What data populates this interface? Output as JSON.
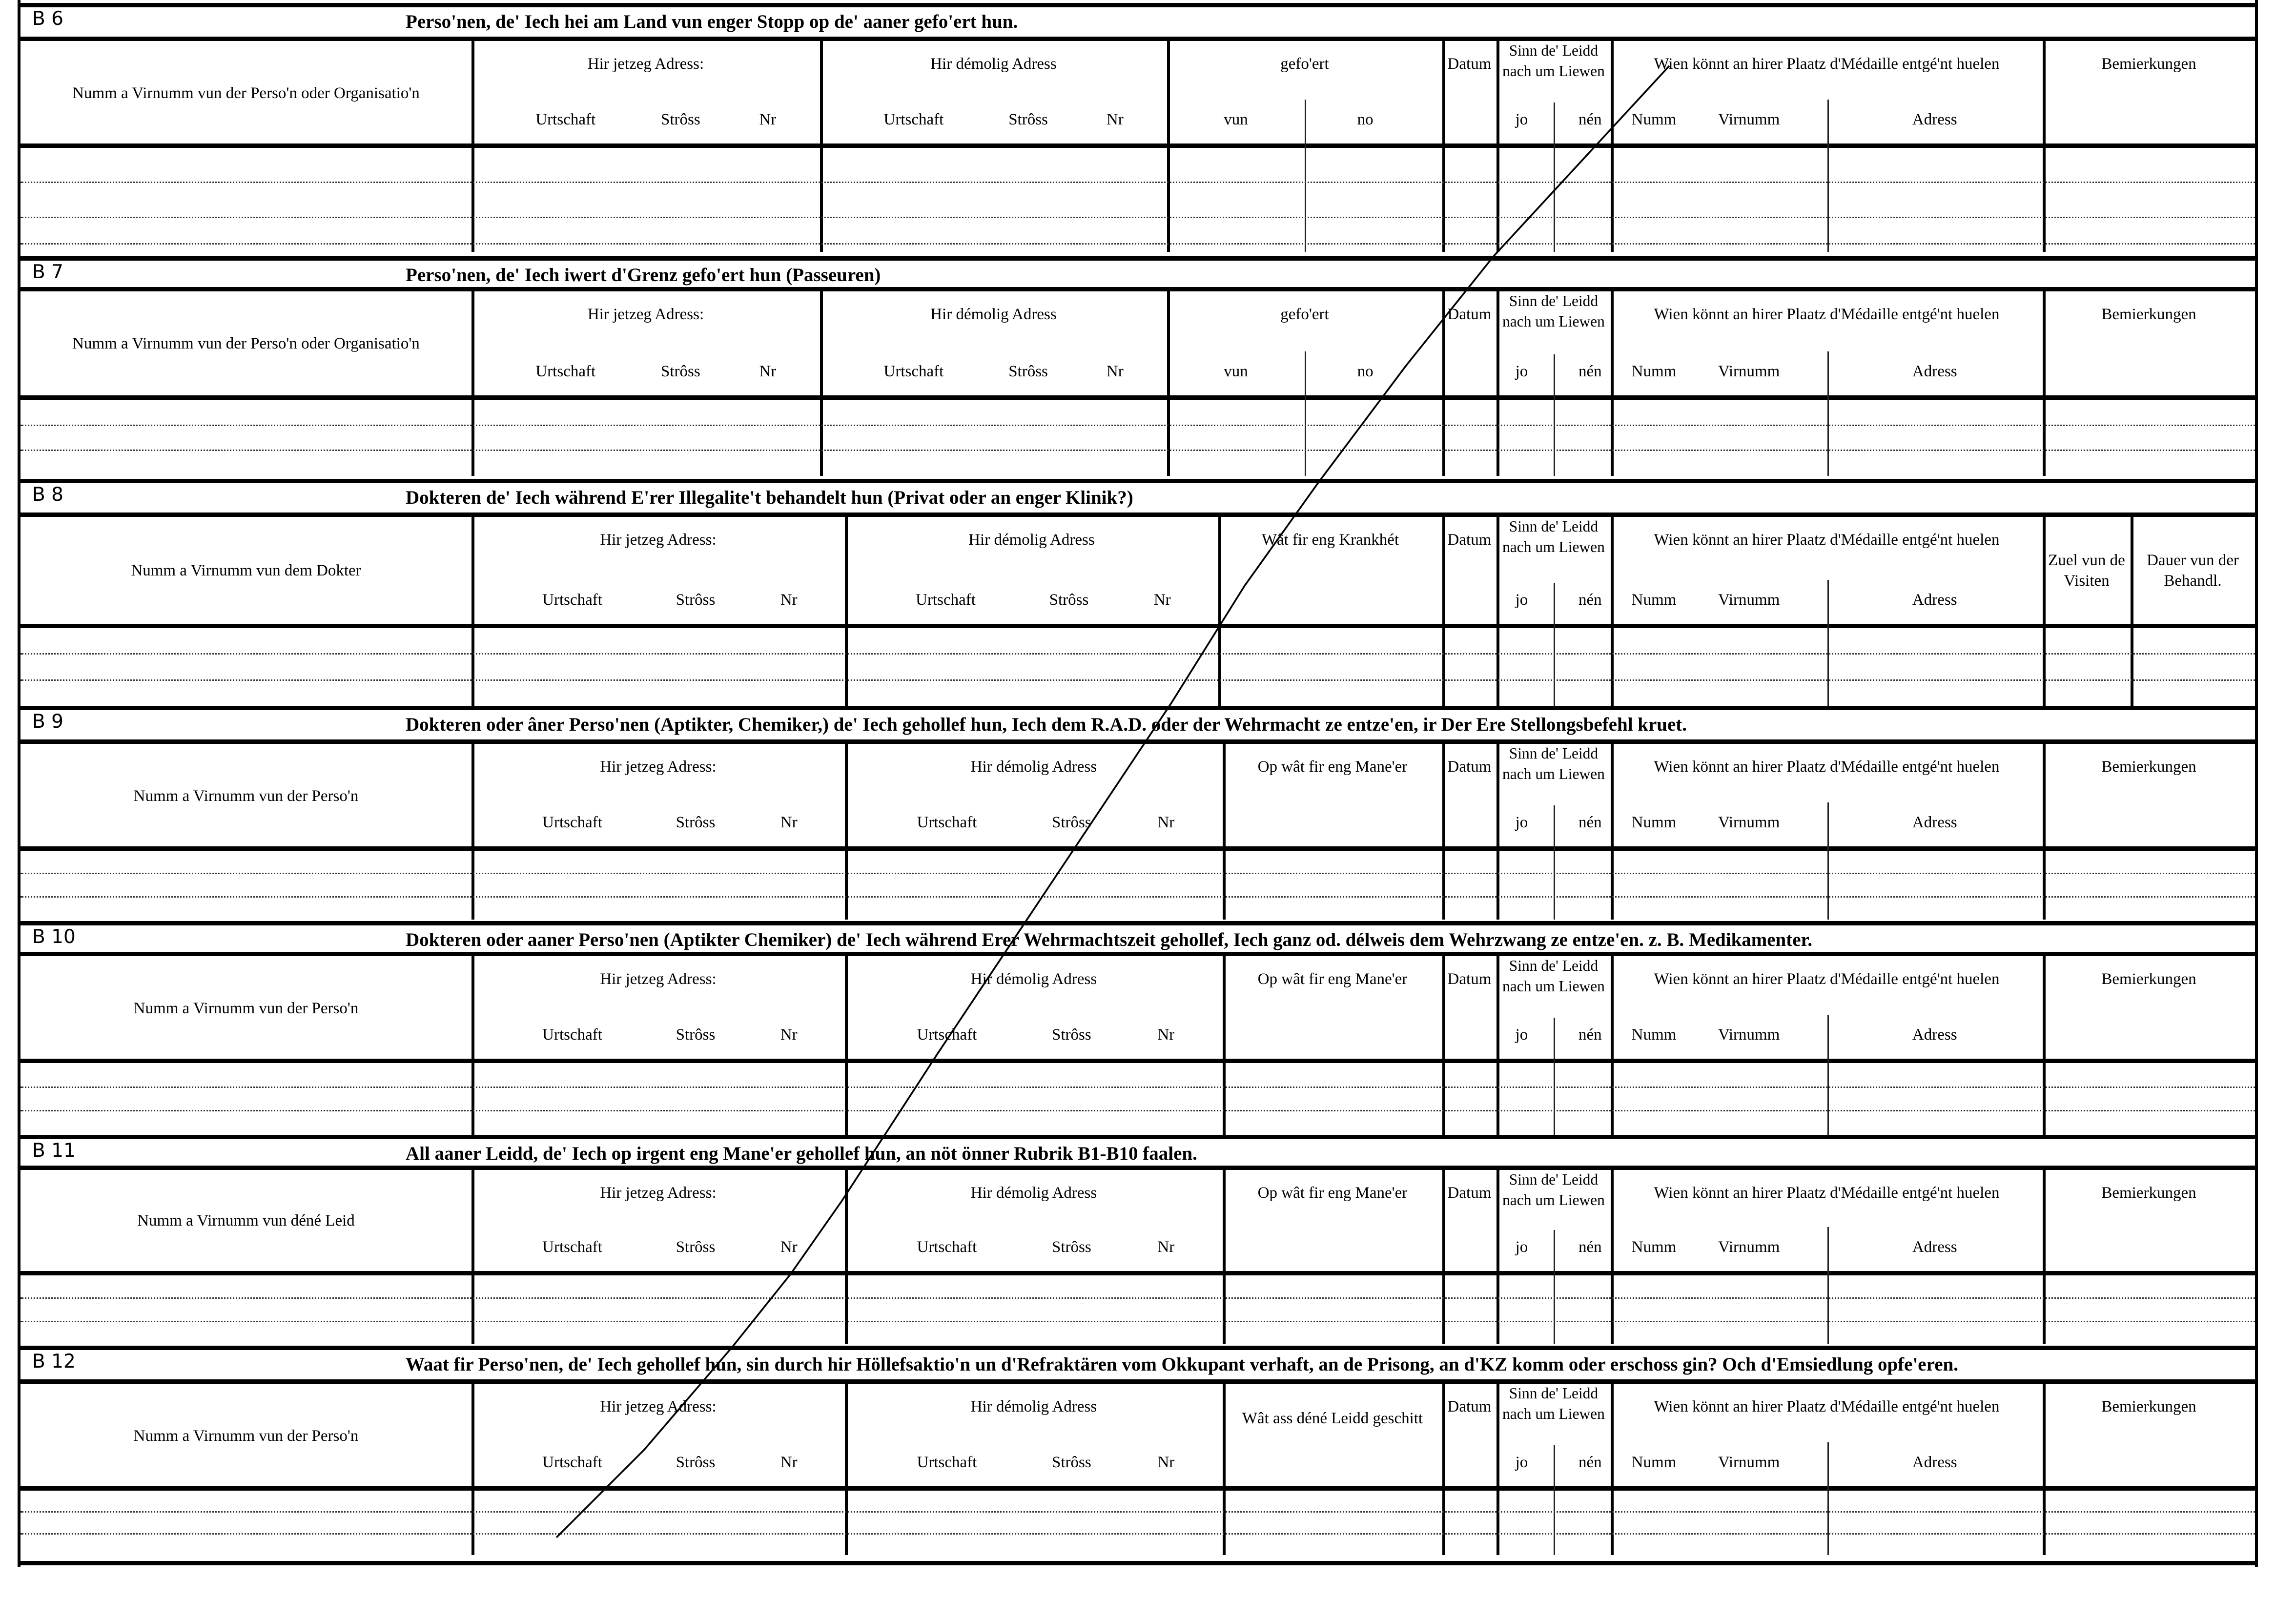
{
  "sections": [
    {
      "code": "B 6",
      "title": "Perso'nen, de' Iech hei am Land vun enger Stopp  op de' aaner gefo'ert hun.",
      "columns": [
        {
          "kind": "name",
          "label": "Numm a Virnumm vun der Perso'n oder Organisatio'n"
        },
        {
          "kind": "address",
          "label": "Hir jetzeg Adress:",
          "subs": [
            "Urtschaft",
            "Strôss",
            "Nr"
          ]
        },
        {
          "kind": "address",
          "label": "Hir démolig Adress",
          "subs": [
            "Urtschaft",
            "Strôss",
            "Nr"
          ]
        },
        {
          "kind": "split",
          "label": "gefo'ert",
          "subs": [
            "vun",
            "no"
          ]
        },
        {
          "kind": "datum",
          "label": "Datum"
        },
        {
          "kind": "sinn",
          "label": "Sinn  de' Leidd  nach um Liewen",
          "subs": [
            "jo",
            "nén"
          ]
        },
        {
          "kind": "wien",
          "label": "Wien  könnt  an  hirer  Plaatz  d'Médaille entgé'nt huelen",
          "subs": [
            "Numm",
            "Virnumm",
            "Adress"
          ]
        },
        {
          "kind": "single",
          "label": "Bemierkungen"
        }
      ]
    },
    {
      "code": "B 7",
      "title": "Perso'nen, de' Iech  iwert  d'Grenz  gefo'ert  hun  (Passeuren)",
      "columns": [
        {
          "kind": "name",
          "label": "Numm a Virnumm vun der Perso'n oder Organisatio'n"
        },
        {
          "kind": "address",
          "label": "Hir jetzeg Adress:",
          "subs": [
            "Urtschaft",
            "Strôss",
            "Nr"
          ]
        },
        {
          "kind": "address",
          "label": "Hir démolig Adress",
          "subs": [
            "Urtschaft",
            "Strôss",
            "Nr"
          ]
        },
        {
          "kind": "split",
          "label": "gefo'ert",
          "subs": [
            "vun",
            "no"
          ]
        },
        {
          "kind": "datum",
          "label": "Datum"
        },
        {
          "kind": "sinn",
          "label": "Sinn  de' Leidd  nach um Liewen",
          "subs": [
            "jo",
            "nén"
          ]
        },
        {
          "kind": "wien",
          "label": "Wien  könnt  an  hirer  Plaatz  d'Médaille entgé'nt huelen",
          "subs": [
            "Numm",
            "Virnumm",
            "Adress"
          ]
        },
        {
          "kind": "single",
          "label": "Bemierkungen"
        }
      ]
    },
    {
      "code": "B 8",
      "title": "Dokteren  de' Iech  während  E'rer  Illegalite't  behandelt  hun  (Privat  oder  an  enger  Klinik?)",
      "columns": [
        {
          "kind": "name",
          "label": "Numm a Virnumm vun dem Dokter"
        },
        {
          "kind": "address",
          "label": "Hir jetzeg Adress:",
          "subs": [
            "Urtschaft",
            "Strôss",
            "Nr"
          ]
        },
        {
          "kind": "address",
          "label": "Hir démolig Adress",
          "subs": [
            "Urtschaft",
            "Strôss",
            "Nr"
          ]
        },
        {
          "kind": "single",
          "label": "Wât fir eng Krankhét"
        },
        {
          "kind": "datum",
          "label": "Datum"
        },
        {
          "kind": "sinn",
          "label": "Sinn  de' Leidd  nach um Liewen",
          "subs": [
            "jo",
            "nén"
          ]
        },
        {
          "kind": "wien",
          "label": "Wien  könnt  an  hirer  Plaatz  d'Médaille entgé'nt huelen",
          "subs": [
            "Numm",
            "Virnumm",
            "Adress"
          ]
        },
        {
          "kind": "mid",
          "label": "Zuel vun de Visiten"
        },
        {
          "kind": "mid",
          "label": "Dauer vun der Behandl."
        }
      ]
    },
    {
      "code": "B 9",
      "title": "Dokteren oder âner Perso'nen (Aptikter, Chemiker,) de' Iech gehollef hun, Iech dem R.A.D. oder der  Wehrmacht  ze  entze'en,  ir  Der Ere  Stellongsbefehl kruet.",
      "columns": [
        {
          "kind": "name",
          "label": "Numm  a  Virnumm  vun der Perso'n"
        },
        {
          "kind": "address",
          "label": "Hir jetzeg Adress:",
          "subs": [
            "Urtschaft",
            "Strôss",
            "Nr"
          ]
        },
        {
          "kind": "address",
          "label": "Hir démolig Adress",
          "subs": [
            "Urtschaft",
            "Strôss",
            "Nr"
          ]
        },
        {
          "kind": "single",
          "label": "Op  wât  fir  eng  Mane'er"
        },
        {
          "kind": "datum",
          "label": "Datum"
        },
        {
          "kind": "sinn",
          "label": "Sinn  de' Leidd  nach um Liewen",
          "subs": [
            "jo",
            "nén"
          ]
        },
        {
          "kind": "wien",
          "label": "Wien  könnt  an  hirer  Plaatz  d'Médaille entgé'nt huelen",
          "subs": [
            "Numm",
            "Virnumm",
            "Adress"
          ]
        },
        {
          "kind": "single",
          "label": "Bemierkungen"
        }
      ]
    },
    {
      "code": "B 10",
      "title": "Dokteren oder aaner Perso'nen (Aptikter Chemiker) de' Iech während Erer Wehrmachtszeit gehollef, Iech ganz od. délweis dem Wehrzwang ze entze'en. z. B. Medikamenter.",
      "columns": [
        {
          "kind": "name",
          "label": "Numm  a  Virnumm  vun der Perso'n"
        },
        {
          "kind": "address",
          "label": "Hir jetzeg Adress:",
          "subs": [
            "Urtschaft",
            "Strôss",
            "Nr"
          ]
        },
        {
          "kind": "address",
          "label": "Hir démolig Adress",
          "subs": [
            "Urtschaft",
            "Strôss",
            "Nr"
          ]
        },
        {
          "kind": "single",
          "label": "Op  wât  fir  eng  Mane'er"
        },
        {
          "kind": "datum",
          "label": "Datum"
        },
        {
          "kind": "sinn",
          "label": "Sinn  de' Leidd  nach um Liewen",
          "subs": [
            "jo",
            "nén"
          ]
        },
        {
          "kind": "wien",
          "label": "Wien  könnt  an  hirer  Plaatz  d'Médaille entgé'nt huelen",
          "subs": [
            "Numm",
            "Virnumm",
            "Adress"
          ]
        },
        {
          "kind": "single",
          "label": "Bemierkungen"
        }
      ]
    },
    {
      "code": "B 11",
      "title": "All aaner Leidd, de' Iech op irgent eng Mane'er gehollef hun, an nöt önner Rubrik B1-B10 faalen.",
      "columns": [
        {
          "kind": "name",
          "label": "Numm  a  Virnumm  vun  déné  Leid"
        },
        {
          "kind": "address",
          "label": "Hir jetzeg Adress:",
          "subs": [
            "Urtschaft",
            "Strôss",
            "Nr"
          ]
        },
        {
          "kind": "address",
          "label": "Hir démolig Adress",
          "subs": [
            "Urtschaft",
            "Strôss",
            "Nr"
          ]
        },
        {
          "kind": "single",
          "label": "Op  wât  fir  eng  Mane'er"
        },
        {
          "kind": "datum",
          "label": "Datum"
        },
        {
          "kind": "sinn",
          "label": "Sinn  de' Leidd  nach um Liewen",
          "subs": [
            "jo",
            "nén"
          ]
        },
        {
          "kind": "wien",
          "label": "Wien  könnt  an  hirer  Plaatz  d'Médaille entgé'nt huelen",
          "subs": [
            "Numm",
            "Virnumm",
            "Adress"
          ]
        },
        {
          "kind": "single",
          "label": "Bemierkungen"
        }
      ]
    },
    {
      "code": "B 12",
      "title": "Waat fir Perso'nen, de' Iech gehollef hun, sin durch hir Höllefsaktio'n un d'Refraktären vom Okkupant verhaft, an de Prisong, an d'KZ komm oder  erschoss gin? Och d'Emsiedlung opfe'eren.",
      "columns": [
        {
          "kind": "name",
          "label": "Numm  a  Virnumm  vun der Perso'n"
        },
        {
          "kind": "address",
          "label": "Hir jetzeg Adress:",
          "subs": [
            "Urtschaft",
            "Strôss",
            "Nr"
          ]
        },
        {
          "kind": "address",
          "label": "Hir démolig Adress",
          "subs": [
            "Urtschaft",
            "Strôss",
            "Nr"
          ]
        },
        {
          "kind": "single2",
          "label": "Wât  ass  déné  Leidd geschitt"
        },
        {
          "kind": "datum",
          "label": "Datum"
        },
        {
          "kind": "sinn",
          "label": "Sinn  de' Leidd  nach um Liewen",
          "subs": [
            "jo",
            "nén"
          ]
        },
        {
          "kind": "wien",
          "label": "Wien  könnt  an  hirer  Plaatz  d'Médaille entgé'nt huelen",
          "subs": [
            "Numm",
            "Virnumm",
            "Adress"
          ]
        },
        {
          "kind": "single",
          "label": "Bemierkungen"
        }
      ]
    }
  ]
}
